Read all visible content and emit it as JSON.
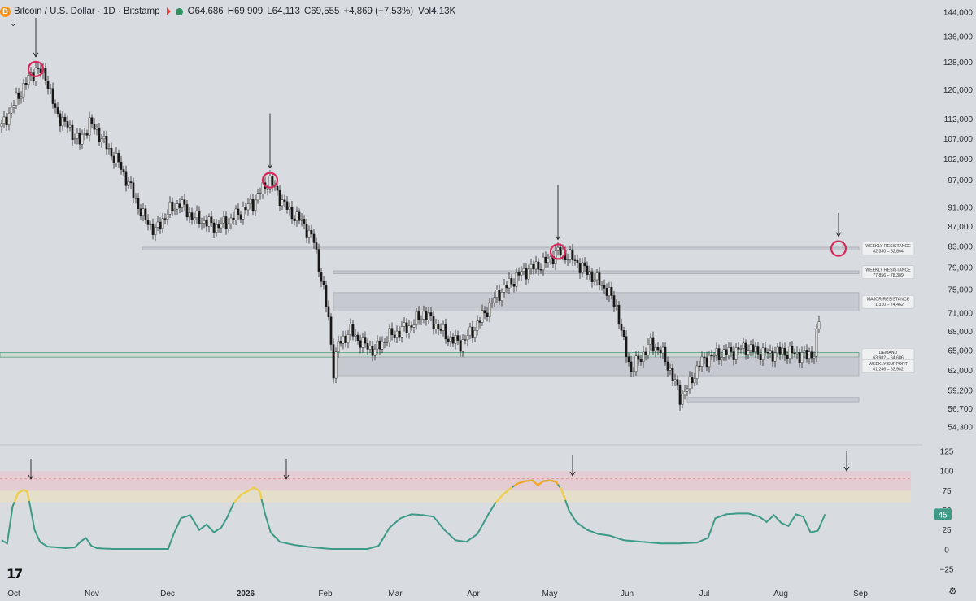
{
  "header": {
    "symbol": "Bitcoin / U.S. Dollar · 1D · Bitstamp",
    "btc_glyph": "B",
    "open_label": "O",
    "open": "64,686",
    "high_label": "H",
    "high": "69,909",
    "low_label": "L",
    "low": "64,113",
    "close_label": "C",
    "close": "69,555",
    "change": "+4,869 (+7.53%)",
    "vol_label": "Vol",
    "vol": "4.13K"
  },
  "icons": {
    "chevron": "chevron-down-icon",
    "logo": "tradingview-logo",
    "settings": "gear-icon"
  },
  "logo_text": "17",
  "colors": {
    "background": "#d8dbe0",
    "candle_up": "#f0f0ec",
    "candle_down": "#1a1a1a",
    "zone_fill": "#c6c9cf",
    "circle": "#d6295a",
    "rsi_line": "#3d9a86",
    "rsi_hot": "#f5a623",
    "rsi_warm": "#f2d04a",
    "rsi_label_bg": "#3d9a86"
  },
  "chart_data": [
    {
      "type": "candlestick",
      "price_axis": [
        "144,000",
        "136,000",
        "128,000",
        "120,000",
        "112,000",
        "107,000",
        "102,000",
        "97,000",
        "91,000",
        "87,000",
        "83,000",
        "79,000",
        "75,000",
        "71,000",
        "68,000",
        "65,000",
        "62,000",
        "59,200",
        "56,700",
        "54,300"
      ],
      "x_axis": [
        "Oct",
        "Nov",
        "Dec",
        "2026",
        "Feb",
        "Mar",
        "Apr",
        "May",
        "Jun",
        "Jul",
        "Aug",
        "Sep"
      ],
      "scale": "log",
      "ylim": [
        52000,
        146000
      ],
      "anchors": [
        [
          0,
          110000
        ],
        [
          5,
          116000
        ],
        [
          10,
          122000
        ],
        [
          14,
          126000
        ],
        [
          18,
          124000
        ],
        [
          22,
          114000
        ],
        [
          27,
          110000
        ],
        [
          32,
          106000
        ],
        [
          36,
          111000
        ],
        [
          40,
          108000
        ],
        [
          44,
          104000
        ],
        [
          48,
          101000
        ],
        [
          53,
          95000
        ],
        [
          58,
          89000
        ],
        [
          63,
          86000
        ],
        [
          68,
          90000
        ],
        [
          73,
          92000
        ],
        [
          78,
          89000
        ],
        [
          83,
          88000
        ],
        [
          88,
          87000
        ],
        [
          93,
          88000
        ],
        [
          98,
          90000
        ],
        [
          103,
          92000
        ],
        [
          107,
          95000
        ],
        [
          110,
          97000
        ],
        [
          113,
          94000
        ],
        [
          118,
          90000
        ],
        [
          123,
          88000
        ],
        [
          128,
          84000
        ],
        [
          131,
          77000
        ],
        [
          134,
          70000
        ],
        [
          136,
          62000
        ],
        [
          138,
          66000
        ],
        [
          143,
          68000
        ],
        [
          148,
          66000
        ],
        [
          153,
          65000
        ],
        [
          158,
          67000
        ],
        [
          163,
          68000
        ],
        [
          168,
          69000
        ],
        [
          173,
          71000
        ],
        [
          178,
          69000
        ],
        [
          183,
          67000
        ],
        [
          188,
          66000
        ],
        [
          193,
          68000
        ],
        [
          198,
          71000
        ],
        [
          203,
          74000
        ],
        [
          208,
          76000
        ],
        [
          213,
          78000
        ],
        [
          218,
          79000
        ],
        [
          223,
          80000
        ],
        [
          228,
          82000
        ],
        [
          233,
          81000
        ],
        [
          238,
          79000
        ],
        [
          243,
          77000
        ],
        [
          248,
          75000
        ],
        [
          252,
          72000
        ],
        [
          255,
          66000
        ],
        [
          258,
          62000
        ],
        [
          262,
          64000
        ],
        [
          266,
          66000
        ],
        [
          270,
          65000
        ],
        [
          274,
          62000
        ],
        [
          278,
          58200
        ],
        [
          282,
          60000
        ],
        [
          286,
          63000
        ],
        [
          290,
          64000
        ],
        [
          295,
          64500
        ],
        [
          300,
          64800
        ],
        [
          305,
          65500
        ],
        [
          310,
          64700
        ],
        [
          315,
          64500
        ],
        [
          320,
          64800
        ],
        [
          325,
          64500
        ],
        [
          330,
          64200
        ],
        [
          333,
          64700
        ],
        [
          335,
          69555
        ]
      ],
      "zones": [
        {
          "label": "WEEKLY RESISTANCE",
          "range": "82,330 – 82,864",
          "low": 82330,
          "high": 82864
        },
        {
          "label": "WEEKLY RESISTANCE",
          "range": "77,856 – 78,389",
          "low": 77856,
          "high": 78389
        },
        {
          "label": "MAJOR RESISTANCE",
          "range": "71,310 – 74,462",
          "low": 71310,
          "high": 74462
        },
        {
          "label": "DEMAND",
          "range": "63,982 – 64,686",
          "low": 63982,
          "high": 64686
        },
        {
          "label": "WEEKLY SUPPORT",
          "range": "61,246 – 63,982",
          "low": 61246,
          "high": 63982
        },
        {
          "label": "",
          "range": "",
          "low": 57600,
          "high": 58200
        }
      ],
      "highlights": [
        {
          "index": 14,
          "price": 126000
        },
        {
          "index": 110,
          "price": 97000
        },
        {
          "index": 228,
          "price": 82000
        },
        {
          "index": 360,
          "price": 82600
        }
      ]
    },
    {
      "type": "line",
      "name": "",
      "yaxis": [
        "125",
        "100",
        "75",
        "50",
        "25",
        "0",
        "−25"
      ],
      "ylim": [
        -30,
        130
      ],
      "last_value": "45",
      "bands": {
        "overbought": [
          75,
          100
        ],
        "warm": [
          60,
          75
        ],
        "dashed": 90
      },
      "anchors": [
        [
          0,
          12
        ],
        [
          3,
          8
        ],
        [
          6,
          55
        ],
        [
          9,
          72
        ],
        [
          12,
          76
        ],
        [
          14,
          74
        ],
        [
          16,
          50
        ],
        [
          18,
          25
        ],
        [
          21,
          10
        ],
        [
          25,
          4
        ],
        [
          30,
          3
        ],
        [
          35,
          2
        ],
        [
          40,
          3
        ],
        [
          43,
          10
        ],
        [
          46,
          15
        ],
        [
          49,
          5
        ],
        [
          52,
          2
        ],
        [
          60,
          1
        ],
        [
          70,
          1
        ],
        [
          80,
          1
        ],
        [
          88,
          1
        ],
        [
          91,
          1
        ],
        [
          94,
          20
        ],
        [
          98,
          40
        ],
        [
          103,
          44
        ],
        [
          108,
          25
        ],
        [
          112,
          32
        ],
        [
          116,
          22
        ],
        [
          120,
          28
        ],
        [
          123,
          40
        ],
        [
          127,
          60
        ],
        [
          131,
          70
        ],
        [
          135,
          75
        ],
        [
          138,
          79
        ],
        [
          141,
          74
        ],
        [
          144,
          45
        ],
        [
          147,
          22
        ],
        [
          152,
          10
        ],
        [
          160,
          6
        ],
        [
          170,
          3
        ],
        [
          180,
          1
        ],
        [
          200,
          1
        ],
        [
          206,
          5
        ],
        [
          212,
          28
        ],
        [
          218,
          40
        ],
        [
          224,
          45
        ],
        [
          230,
          44
        ],
        [
          236,
          42
        ],
        [
          242,
          25
        ],
        [
          248,
          12
        ],
        [
          254,
          10
        ],
        [
          260,
          20
        ],
        [
          266,
          45
        ],
        [
          270,
          60
        ],
        [
          274,
          70
        ],
        [
          278,
          78
        ],
        [
          282,
          84
        ],
        [
          286,
          87
        ],
        [
          290,
          88
        ],
        [
          293,
          82
        ],
        [
          296,
          87
        ],
        [
          300,
          88
        ],
        [
          303,
          86
        ],
        [
          306,
          76
        ],
        [
          310,
          50
        ],
        [
          314,
          35
        ],
        [
          320,
          25
        ],
        [
          326,
          20
        ],
        [
          332,
          18
        ],
        [
          340,
          12
        ],
        [
          350,
          10
        ],
        [
          360,
          8
        ],
        [
          370,
          8
        ],
        [
          380,
          9
        ],
        [
          386,
          15
        ],
        [
          390,
          40
        ],
        [
          396,
          45
        ],
        [
          402,
          46
        ],
        [
          408,
          46
        ],
        [
          414,
          42
        ],
        [
          418,
          35
        ],
        [
          422,
          44
        ],
        [
          426,
          34
        ],
        [
          430,
          30
        ],
        [
          434,
          45
        ],
        [
          438,
          42
        ],
        [
          442,
          22
        ],
        [
          446,
          24
        ],
        [
          450,
          45
        ]
      ]
    }
  ]
}
